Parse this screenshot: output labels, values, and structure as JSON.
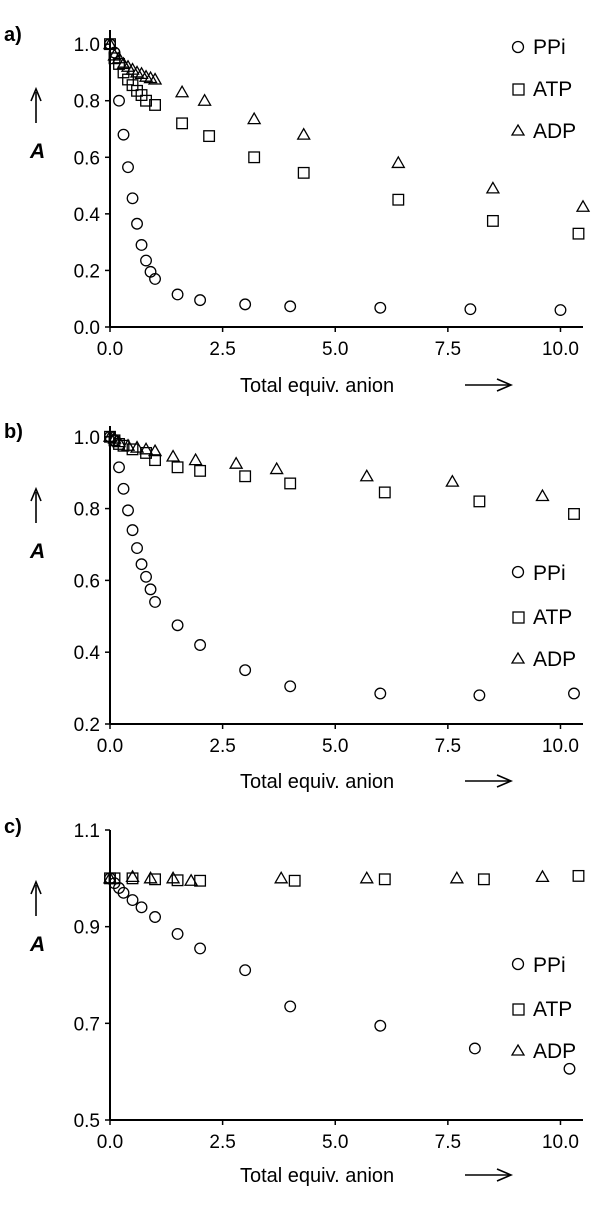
{
  "figure": {
    "colors": {
      "ink": "#000000",
      "background": "#ffffff"
    },
    "marker_shapes": {
      "PPi": "circle",
      "ATP": "square",
      "ADP": "triangle"
    }
  },
  "chart_data": [
    {
      "type": "scatter",
      "panel": "a)",
      "xlabel": "Total equiv. anion",
      "ylabel": "A",
      "xlim": [
        0,
        10.5
      ],
      "ylim": [
        0,
        1.05
      ],
      "xticks": [
        "0.0",
        "2.5",
        "5.0",
        "7.5",
        "10.0"
      ],
      "yticks": [
        "0.0",
        "0.2",
        "0.4",
        "0.6",
        "0.8",
        "1.0"
      ],
      "legend": "top-right",
      "grid": false,
      "series": [
        {
          "name": "PPi",
          "marker": "circle",
          "points": [
            [
              0,
              1.0
            ],
            [
              0.1,
              0.97
            ],
            [
              0.2,
              0.8
            ],
            [
              0.3,
              0.68
            ],
            [
              0.4,
              0.565
            ],
            [
              0.5,
              0.455
            ],
            [
              0.6,
              0.365
            ],
            [
              0.7,
              0.29
            ],
            [
              0.8,
              0.235
            ],
            [
              0.9,
              0.195
            ],
            [
              1.0,
              0.17
            ],
            [
              1.5,
              0.115
            ],
            [
              2.0,
              0.095
            ],
            [
              3.0,
              0.08
            ],
            [
              4.0,
              0.073
            ],
            [
              6.0,
              0.068
            ],
            [
              8.0,
              0.063
            ],
            [
              10.0,
              0.06
            ]
          ]
        },
        {
          "name": "ATP",
          "marker": "square",
          "points": [
            [
              0,
              1.0
            ],
            [
              0.1,
              0.95
            ],
            [
              0.2,
              0.93
            ],
            [
              0.3,
              0.9
            ],
            [
              0.4,
              0.875
            ],
            [
              0.5,
              0.855
            ],
            [
              0.6,
              0.835
            ],
            [
              0.7,
              0.82
            ],
            [
              0.8,
              0.8
            ],
            [
              1.0,
              0.785
            ],
            [
              1.6,
              0.72
            ],
            [
              2.2,
              0.675
            ],
            [
              3.2,
              0.6
            ],
            [
              4.3,
              0.545
            ],
            [
              6.4,
              0.45
            ],
            [
              8.5,
              0.375
            ],
            [
              10.4,
              0.33
            ]
          ]
        },
        {
          "name": "ADP",
          "marker": "triangle",
          "points": [
            [
              0,
              1.0
            ],
            [
              0.1,
              0.96
            ],
            [
              0.2,
              0.95
            ],
            [
              0.3,
              0.93
            ],
            [
              0.4,
              0.92
            ],
            [
              0.5,
              0.91
            ],
            [
              0.6,
              0.9
            ],
            [
              0.7,
              0.895
            ],
            [
              0.8,
              0.885
            ],
            [
              0.9,
              0.88
            ],
            [
              1.0,
              0.875
            ],
            [
              1.6,
              0.83
            ],
            [
              2.1,
              0.8
            ],
            [
              3.2,
              0.735
            ],
            [
              4.3,
              0.68
            ],
            [
              6.4,
              0.58
            ],
            [
              8.5,
              0.49
            ],
            [
              10.5,
              0.425
            ]
          ]
        }
      ]
    },
    {
      "type": "scatter",
      "panel": "b)",
      "xlabel": "Total equiv. anion",
      "ylabel": "A",
      "xlim": [
        0,
        10.5
      ],
      "ylim": [
        0.2,
        1.03
      ],
      "xticks": [
        "0.0",
        "2.5",
        "5.0",
        "7.5",
        "10.0"
      ],
      "yticks": [
        "0.2",
        "0.4",
        "0.6",
        "0.8",
        "1.0"
      ],
      "legend": "right",
      "grid": false,
      "series": [
        {
          "name": "PPi",
          "marker": "circle",
          "points": [
            [
              0,
              1.0
            ],
            [
              0.1,
              0.99
            ],
            [
              0.2,
              0.915
            ],
            [
              0.3,
              0.855
            ],
            [
              0.4,
              0.795
            ],
            [
              0.5,
              0.74
            ],
            [
              0.6,
              0.69
            ],
            [
              0.7,
              0.645
            ],
            [
              0.8,
              0.61
            ],
            [
              0.9,
              0.575
            ],
            [
              1.0,
              0.54
            ],
            [
              1.5,
              0.475
            ],
            [
              2.0,
              0.42
            ],
            [
              3.0,
              0.35
            ],
            [
              4.0,
              0.305
            ],
            [
              6.0,
              0.285
            ],
            [
              8.2,
              0.28
            ],
            [
              10.3,
              0.285
            ]
          ]
        },
        {
          "name": "ATP",
          "marker": "square",
          "points": [
            [
              0,
              1.0
            ],
            [
              0.1,
              0.99
            ],
            [
              0.2,
              0.98
            ],
            [
              0.3,
              0.975
            ],
            [
              0.5,
              0.965
            ],
            [
              0.8,
              0.955
            ],
            [
              1.0,
              0.935
            ],
            [
              1.5,
              0.915
            ],
            [
              2.0,
              0.905
            ],
            [
              3.0,
              0.89
            ],
            [
              4.0,
              0.87
            ],
            [
              6.1,
              0.845
            ],
            [
              8.2,
              0.82
            ],
            [
              10.3,
              0.785
            ]
          ]
        },
        {
          "name": "ADP",
          "marker": "triangle",
          "points": [
            [
              0,
              1.0
            ],
            [
              0.1,
              0.995
            ],
            [
              0.2,
              0.985
            ],
            [
              0.4,
              0.975
            ],
            [
              0.6,
              0.97
            ],
            [
              0.8,
              0.965
            ],
            [
              1.0,
              0.96
            ],
            [
              1.4,
              0.945
            ],
            [
              1.9,
              0.935
            ],
            [
              2.8,
              0.925
            ],
            [
              3.7,
              0.91
            ],
            [
              5.7,
              0.89
            ],
            [
              7.6,
              0.875
            ],
            [
              9.6,
              0.835
            ]
          ]
        }
      ]
    },
    {
      "type": "scatter",
      "panel": "c)",
      "xlabel": "Total equiv. anion",
      "ylabel": "A",
      "xlim": [
        0,
        10.5
      ],
      "ylim": [
        0.5,
        1.1
      ],
      "xticks": [
        "0.0",
        "2.5",
        "5.0",
        "7.5",
        "10.0"
      ],
      "yticks": [
        "0.5",
        "0.7",
        "0.9",
        "1.1"
      ],
      "legend": "right",
      "grid": false,
      "series": [
        {
          "name": "PPi",
          "marker": "circle",
          "points": [
            [
              0,
              1.0
            ],
            [
              0.1,
              0.99
            ],
            [
              0.2,
              0.98
            ],
            [
              0.3,
              0.97
            ],
            [
              0.5,
              0.955
            ],
            [
              0.7,
              0.94
            ],
            [
              1.0,
              0.92
            ],
            [
              1.5,
              0.885
            ],
            [
              2.0,
              0.855
            ],
            [
              3.0,
              0.81
            ],
            [
              4.0,
              0.735
            ],
            [
              6.0,
              0.695
            ],
            [
              8.1,
              0.648
            ],
            [
              10.2,
              0.606
            ]
          ]
        },
        {
          "name": "ATP",
          "marker": "square",
          "points": [
            [
              0,
              1.0
            ],
            [
              0.1,
              1.0
            ],
            [
              0.5,
              1.0
            ],
            [
              1.0,
              0.998
            ],
            [
              1.5,
              0.996
            ],
            [
              2.0,
              0.995
            ],
            [
              4.1,
              0.995
            ],
            [
              6.1,
              0.998
            ],
            [
              8.3,
              0.998
            ],
            [
              10.4,
              1.005
            ]
          ]
        },
        {
          "name": "ADP",
          "marker": "triangle",
          "points": [
            [
              0,
              1.0
            ],
            [
              0.5,
              1.003
            ],
            [
              0.9,
              1.0
            ],
            [
              1.4,
              1.0
            ],
            [
              1.8,
              0.995
            ],
            [
              3.8,
              1.0
            ],
            [
              5.7,
              1.0
            ],
            [
              7.7,
              1.0
            ],
            [
              9.6,
              1.003
            ]
          ]
        }
      ]
    }
  ]
}
